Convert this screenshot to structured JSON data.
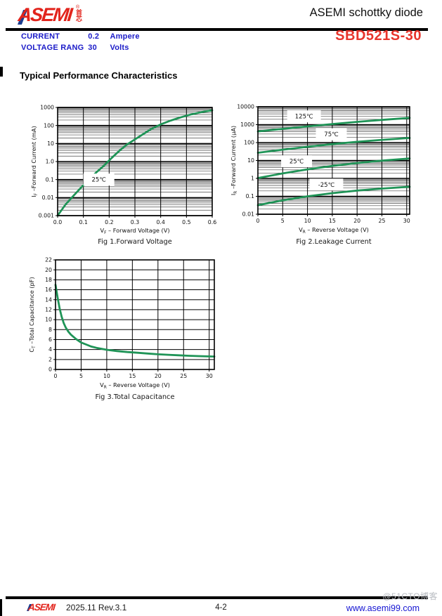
{
  "header": {
    "logo": {
      "text": "ASEMI",
      "registered": "®",
      "cjk": "首芯"
    },
    "title": "ASEMI schottky diode",
    "specs": [
      {
        "label": "CURRENT",
        "value": "0.2",
        "unit": "Ampere"
      },
      {
        "label": "VOLTAGE RANG",
        "value": "30",
        "unit": "Volts"
      }
    ],
    "part_number": "SBD521S-30"
  },
  "section_title": "Typical Performance Characteristics",
  "colors": {
    "curve_green": "#1f9457",
    "brand_red": "#e2241c",
    "part_red": "#e8352c",
    "spec_blue": "#1b1bc8",
    "link_blue": "#1414d2",
    "watermark_gray": "#b9bcc2"
  },
  "chart_data": [
    {
      "type": "line",
      "caption": "Fig 1.Forward Voltage",
      "xlabel": "V_F – Forward Voltage  (V)",
      "ylabel": "I_F –Forward Current  (mA)",
      "x": {
        "scale": "linear",
        "min": 0,
        "max": 0.6,
        "ticks": [
          0,
          0.1,
          0.2,
          0.3,
          0.4,
          0.5,
          0.6
        ],
        "tick_labels": [
          "0.0",
          "0.1",
          "0.2",
          "0.3",
          "0.4",
          "0.5",
          "0.6"
        ]
      },
      "y": {
        "scale": "log",
        "min": 0.001,
        "max": 1000,
        "ticks": [
          0.001,
          0.01,
          0.1,
          1,
          10,
          100,
          1000
        ],
        "tick_labels": [
          "0.001",
          "0.01",
          "0.1",
          "1.0",
          "10",
          "100",
          "1000"
        ]
      },
      "grid": "log-dense",
      "series": [
        {
          "name": "25℃",
          "points": [
            [
              0,
              0.001
            ],
            [
              0.03,
              0.004
            ],
            [
              0.06,
              0.012
            ],
            [
              0.09,
              0.035
            ],
            [
              0.12,
              0.09
            ],
            [
              0.15,
              0.25
            ],
            [
              0.18,
              0.6
            ],
            [
              0.21,
              1.6
            ],
            [
              0.24,
              4
            ],
            [
              0.27,
              9
            ],
            [
              0.3,
              17
            ],
            [
              0.33,
              32
            ],
            [
              0.36,
              60
            ],
            [
              0.4,
              115
            ],
            [
              0.44,
              190
            ],
            [
              0.48,
              290
            ],
            [
              0.52,
              420
            ],
            [
              0.56,
              560
            ],
            [
              0.6,
              700
            ]
          ]
        }
      ],
      "annotations": [
        {
          "text": "25℃",
          "x": 0.16,
          "y": 0.1
        }
      ]
    },
    {
      "type": "line",
      "caption": "Fig 2.Leakage Current",
      "xlabel": "V_R – Reverse Voltage  (V)",
      "ylabel": "I_R –Forward Current  (μA)",
      "x": {
        "scale": "linear",
        "min": 0,
        "max": 30.6,
        "ticks": [
          0,
          5,
          10,
          15,
          20,
          25,
          30
        ],
        "tick_labels": [
          "0",
          "5",
          "10",
          "15",
          "20",
          "25",
          "30"
        ]
      },
      "y": {
        "scale": "log",
        "min": 0.01,
        "max": 10000,
        "ticks": [
          0.01,
          0.1,
          1,
          10,
          100,
          1000,
          10000
        ],
        "tick_labels": [
          "0.01",
          "0.1",
          "1",
          "10",
          "100",
          "1000",
          "10000"
        ]
      },
      "grid": "log-dense",
      "series": [
        {
          "name": "125℃",
          "points": [
            [
              0,
              420
            ],
            [
              5,
              580
            ],
            [
              10,
              800
            ],
            [
              15,
              1080
            ],
            [
              20,
              1430
            ],
            [
              25,
              1850
            ],
            [
              30.6,
              2400
            ]
          ]
        },
        {
          "name": "75℃",
          "points": [
            [
              0,
              27
            ],
            [
              5,
              40
            ],
            [
              10,
              58
            ],
            [
              15,
              82
            ],
            [
              20,
              110
            ],
            [
              25,
              142
            ],
            [
              30.6,
              182
            ]
          ]
        },
        {
          "name": "25℃",
          "points": [
            [
              0,
              1.05
            ],
            [
              5,
              1.9
            ],
            [
              10,
              3.2
            ],
            [
              15,
              5.0
            ],
            [
              20,
              7.2
            ],
            [
              25,
              9.8
            ],
            [
              30.6,
              13
            ]
          ]
        },
        {
          "name": "-25℃",
          "points": [
            [
              0,
              0.032
            ],
            [
              5,
              0.06
            ],
            [
              10,
              0.1
            ],
            [
              15,
              0.15
            ],
            [
              20,
              0.21
            ],
            [
              25,
              0.27
            ],
            [
              30.6,
              0.34
            ]
          ]
        }
      ],
      "annotations": [
        {
          "text": "125℃",
          "x": 9.3,
          "y": 2900
        },
        {
          "text": "75℃",
          "x": 14.8,
          "y": 290
        },
        {
          "text": "25℃",
          "x": 7.8,
          "y": 9
        },
        {
          "text": "-25℃",
          "x": 13.8,
          "y": 0.45
        }
      ]
    },
    {
      "type": "line",
      "caption": "Fig 3.Total Capacitance",
      "xlabel": "V_R – Reverse Voltage  (V)",
      "ylabel": "C_T –Total Capacitance  (pF)",
      "x": {
        "scale": "linear",
        "min": 0,
        "max": 31,
        "ticks": [
          0,
          5,
          10,
          15,
          20,
          25,
          30
        ],
        "tick_labels": [
          "0",
          "5",
          "10",
          "15",
          "20",
          "25",
          "30"
        ]
      },
      "y": {
        "scale": "linear",
        "min": 0,
        "max": 22,
        "ticks": [
          0,
          2,
          4,
          6,
          8,
          10,
          12,
          14,
          16,
          18,
          20,
          22
        ],
        "tick_labels": [
          "0",
          "2",
          "4",
          "6",
          "8",
          "10",
          "12",
          "14",
          "16",
          "18",
          "20",
          "22"
        ]
      },
      "grid": "plain",
      "series": [
        {
          "name": "CT",
          "points": [
            [
              0,
              17
            ],
            [
              0.4,
              14.5
            ],
            [
              0.8,
              12.3
            ],
            [
              1.2,
              10.6
            ],
            [
              1.6,
              9.3
            ],
            [
              2,
              8.4
            ],
            [
              2.5,
              7.6
            ],
            [
              3,
              7.0
            ],
            [
              4,
              6.1
            ],
            [
              5,
              5.4
            ],
            [
              6,
              5.0
            ],
            [
              7,
              4.6
            ],
            [
              8,
              4.35
            ],
            [
              10,
              3.95
            ],
            [
              12,
              3.7
            ],
            [
              14,
              3.5
            ],
            [
              16,
              3.35
            ],
            [
              18,
              3.2
            ],
            [
              20,
              3.05
            ],
            [
              22,
              2.95
            ],
            [
              24,
              2.85
            ],
            [
              26,
              2.75
            ],
            [
              28,
              2.68
            ],
            [
              31,
              2.6
            ]
          ]
        }
      ],
      "annotations": []
    }
  ],
  "footer": {
    "logo_text": "ASEMI",
    "revision": "2025.11 Rev.3.1",
    "page_number": "4-2",
    "website": "www.asemi99.com",
    "watermark": "@51CTO博客"
  }
}
